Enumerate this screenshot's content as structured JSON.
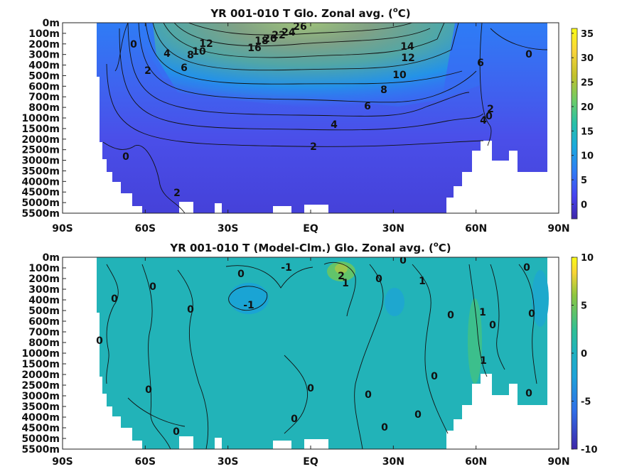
{
  "chart_data": [
    {
      "type": "heatmap",
      "subtype": "filled contour (zonal average section)",
      "title_main": "YR 001-010 T Glo. Zonal avg. (",
      "title_sup": "o",
      "title_end": "C)",
      "x_ticks": [
        "90S",
        "60S",
        "30S",
        "EQ",
        "30N",
        "60N",
        "90N"
      ],
      "x_range": [
        -90,
        90
      ],
      "y_ticks": [
        "0m",
        "100m",
        "200m",
        "300m",
        "400m",
        "500m",
        "600m",
        "700m",
        "800m",
        "1000m",
        "1500m",
        "2000m",
        "2500m",
        "3000m",
        "3500m",
        "4000m",
        "4500m",
        "5000m",
        "5500m"
      ],
      "y_range_m": [
        0,
        5500
      ],
      "colorbar": {
        "ticks": [
          "35",
          "30",
          "25",
          "20",
          "15",
          "10",
          "5",
          "0"
        ],
        "range": [
          -3,
          36
        ]
      },
      "contour_labels": [
        "0",
        "4",
        "2",
        "6",
        "12",
        "10",
        "8",
        "16",
        "18",
        "20",
        "22",
        "24",
        "26",
        "14",
        "12",
        "10",
        "8",
        "6",
        "4",
        "2",
        "0",
        "6",
        "2",
        "0",
        "4",
        "0"
      ],
      "colormap": [
        "#3e26a8",
        "#4743f0",
        "#2f7cf5",
        "#1aa9dd",
        "#27c0a8",
        "#6ccc68",
        "#c2c12b",
        "#fad43a",
        "#f9fb15"
      ]
    },
    {
      "type": "heatmap",
      "subtype": "filled contour (zonal average anomaly section)",
      "title_main": "YR 001-010 T (Model-Clm.) Glo. Zonal avg. (",
      "title_sup": "o",
      "title_end": "C)",
      "x_ticks": [
        "90S",
        "60S",
        "30S",
        "EQ",
        "30N",
        "60N",
        "90N"
      ],
      "x_range": [
        -90,
        90
      ],
      "y_ticks": [
        "0m",
        "100m",
        "200m",
        "300m",
        "400m",
        "500m",
        "600m",
        "700m",
        "800m",
        "1000m",
        "1500m",
        "2000m",
        "2500m",
        "3000m",
        "3500m",
        "4000m",
        "4500m",
        "5000m",
        "5500m"
      ],
      "y_range_m": [
        0,
        5500
      ],
      "colorbar": {
        "ticks": [
          "10",
          "5",
          "0",
          "-5",
          "-10"
        ],
        "range": [
          -10,
          10
        ]
      },
      "contour_labels": [
        "0",
        "-1",
        "2",
        "1",
        "0",
        "1",
        "0",
        "0",
        "0",
        "0",
        "0",
        "-1",
        "0",
        "0",
        "1",
        "0",
        "0",
        "1",
        "0",
        "0",
        "0",
        "0",
        "0",
        "0",
        "0",
        "0",
        "0"
      ],
      "colormap": [
        "#3e26a8",
        "#2f6ee8",
        "#1ea3d8",
        "#1eb1c0",
        "#2fbf95",
        "#8cc640",
        "#f9d435",
        "#f9fb15"
      ]
    }
  ]
}
